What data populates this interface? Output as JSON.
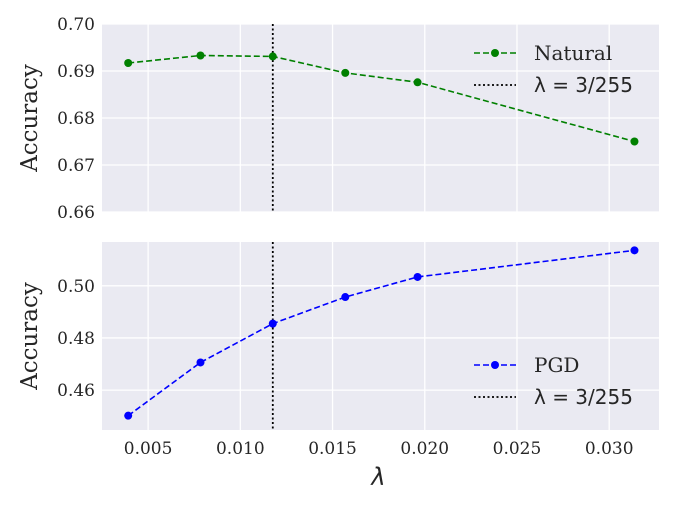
{
  "chart_data": [
    {
      "type": "line",
      "title": "",
      "xlabel": "",
      "ylabel": "Accuracy",
      "xlim": [
        0.0025,
        0.0327
      ],
      "ylim": [
        0.66,
        0.7
      ],
      "yticks": [
        "0.66",
        "0.67",
        "0.68",
        "0.69",
        "0.70"
      ],
      "xticks": [],
      "grid": true,
      "legend_position": "top-right",
      "series": [
        {
          "name": "Natural",
          "color": "#008000",
          "style": "dashed",
          "marker": "circle",
          "x": [
            0.00392,
            0.00784,
            0.01176,
            0.01569,
            0.01961,
            0.03137
          ],
          "y": [
            0.6917,
            0.6933,
            0.6931,
            0.6896,
            0.6876,
            0.675
          ]
        }
      ],
      "vline": {
        "x": 0.01176,
        "label": "λ = 3/255",
        "style": "dotted",
        "color": "#000000"
      }
    },
    {
      "type": "line",
      "title": "",
      "xlabel": "λ",
      "ylabel": "Accuracy",
      "xlim": [
        0.0025,
        0.0327
      ],
      "ylim": [
        0.4447,
        0.5168
      ],
      "yticks": [
        "0.46",
        "0.48",
        "0.50"
      ],
      "xticks": [
        "0.005",
        "0.010",
        "0.015",
        "0.020",
        "0.025",
        "0.030"
      ],
      "grid": true,
      "legend_position": "lower-right",
      "series": [
        {
          "name": "PGD",
          "color": "#0000ff",
          "style": "dashed",
          "marker": "circle",
          "x": [
            0.00392,
            0.00784,
            0.01176,
            0.01569,
            0.01961,
            0.03137
          ],
          "y": [
            0.4502,
            0.4706,
            0.4855,
            0.4957,
            0.5034,
            0.5136
          ]
        }
      ],
      "vline": {
        "x": 0.01176,
        "label": "λ = 3/255",
        "style": "dotted",
        "color": "#000000"
      }
    }
  ]
}
